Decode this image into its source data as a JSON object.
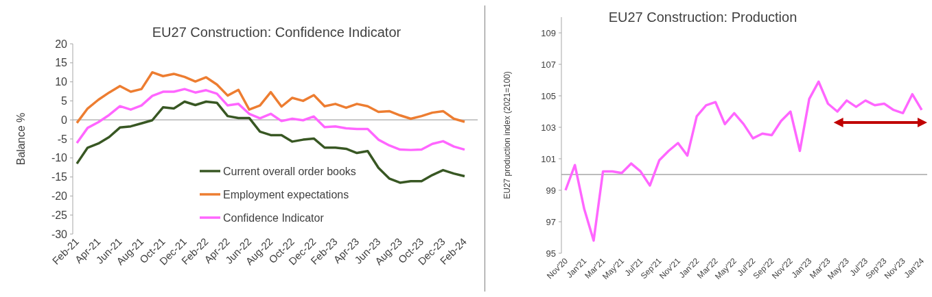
{
  "chart_data": [
    {
      "type": "line",
      "title": "EU27 Construction: Confidence Indicator",
      "ylabel": "Balance %",
      "categories": [
        "Feb-21",
        null,
        "Apr-21",
        null,
        "Jun-21",
        null,
        "Aug-21",
        null,
        "Oct-21",
        null,
        "Dec-21",
        null,
        "Feb-22",
        null,
        "Apr-22",
        null,
        "Jun-22",
        null,
        "Aug-22",
        null,
        "Oct-22",
        null,
        "Dec-22",
        null,
        "Feb-23",
        null,
        "Apr-23",
        null,
        "Jun-23",
        null,
        "Aug-23",
        null,
        "Oct-23",
        null,
        "Dec-23",
        null,
        "Feb-24"
      ],
      "series": [
        {
          "name": "Current overall order books",
          "color": "#385723",
          "values": [
            -11.5,
            -7.3,
            -6.2,
            -4.5,
            -2.0,
            -1.7,
            -0.9,
            -0.1,
            3.3,
            3.0,
            4.8,
            3.9,
            4.8,
            4.5,
            1.0,
            0.5,
            0.5,
            -3.1,
            -4.0,
            -4.0,
            -5.7,
            -5.2,
            -4.9,
            -7.3,
            -7.3,
            -7.6,
            -8.7,
            -8.2,
            -12.6,
            -15.4,
            -16.5,
            -16.1,
            -16.1,
            -14.5,
            -13.2,
            -14.1,
            -14.8
          ]
        },
        {
          "name": "Employment expectations",
          "color": "#ed7d31",
          "values": [
            -0.8,
            3.0,
            5.3,
            7.2,
            8.9,
            7.4,
            8.1,
            12.5,
            11.5,
            12.1,
            11.3,
            10.1,
            11.2,
            9.3,
            6.4,
            7.9,
            2.7,
            3.8,
            7.3,
            3.5,
            5.8,
            5.0,
            6.5,
            3.6,
            4.2,
            3.2,
            4.2,
            3.6,
            2.1,
            2.3,
            1.2,
            0.3,
            1.0,
            1.9,
            2.3,
            0.3,
            -0.5
          ]
        },
        {
          "name": "Confidence Indicator",
          "color": "#ff66ff",
          "values": [
            -6.1,
            -2.1,
            -0.6,
            1.3,
            3.6,
            2.7,
            3.8,
            6.3,
            7.4,
            7.4,
            8.1,
            7.2,
            7.8,
            6.9,
            3.8,
            4.2,
            1.6,
            0.4,
            1.6,
            -0.3,
            0.3,
            -0.1,
            0.9,
            -1.9,
            -1.7,
            -2.2,
            -2.4,
            -2.4,
            -5.2,
            -6.7,
            -7.8,
            -7.9,
            -7.8,
            -6.3,
            -5.6,
            -7.0,
            -7.8
          ]
        }
      ],
      "ylim": [
        -30,
        20
      ],
      "yticks": [
        -30,
        -25,
        -20,
        -15,
        -10,
        -5,
        0,
        5,
        10,
        15,
        20
      ],
      "ref_lines": [
        {
          "axis": "y",
          "value": 0,
          "color": "#a6a6a6"
        }
      ],
      "legend": "bottom",
      "grid": false
    },
    {
      "type": "line",
      "title": "EU27 Construction: Production",
      "ylabel": "EU27 production index (2021=100)",
      "categories": [
        "Nov'20",
        null,
        "Jan'21",
        null,
        "Mar'21",
        null,
        "May'21",
        null,
        "Jul'21",
        null,
        "Sep'21",
        null,
        "Nov'21",
        null,
        "Jan'22",
        null,
        "Mar'22",
        null,
        "May'22",
        null,
        "Jul'22",
        null,
        "Sep'22",
        null,
        "Nov'22",
        null,
        "Jan'23",
        null,
        "Mar'23",
        null,
        "May'23",
        null,
        "Jul'23",
        null,
        "Sep'23",
        null,
        "Nov'23",
        null,
        "Jan'24"
      ],
      "series": [
        {
          "color": "#ff66ff",
          "values": [
            99.0,
            100.6,
            97.8,
            95.8,
            100.2,
            100.2,
            100.1,
            100.7,
            100.2,
            99.3,
            100.9,
            101.5,
            102.0,
            101.2,
            103.7,
            104.4,
            104.6,
            103.2,
            103.9,
            103.2,
            102.3,
            102.6,
            102.5,
            103.4,
            104.0,
            101.5,
            104.8,
            105.9,
            104.5,
            104.0,
            104.7,
            104.3,
            104.7,
            104.4,
            104.5,
            104.1,
            103.9,
            105.1,
            104.1
          ]
        }
      ],
      "ylim": [
        95,
        110
      ],
      "yticks": [
        95,
        97,
        99,
        101,
        103,
        105,
        107,
        109
      ],
      "ref_lines": [
        {
          "axis": "y",
          "value": 100,
          "color": "#a6a6a6"
        }
      ],
      "grid": false
    }
  ]
}
